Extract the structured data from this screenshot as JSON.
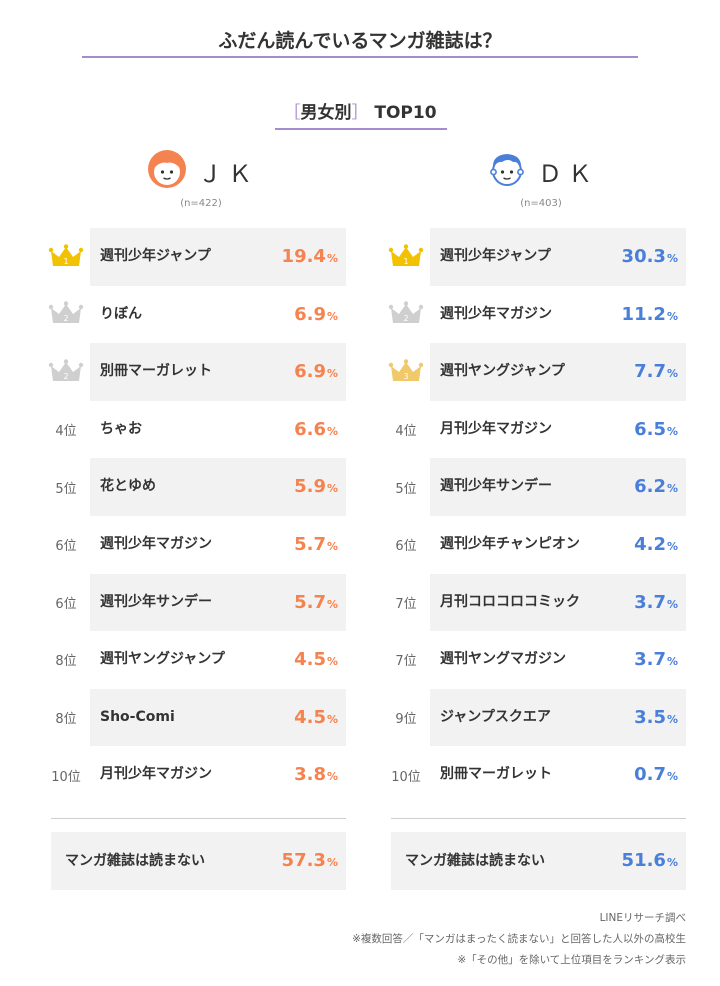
{
  "title": "ふだん読んでいるマンガ雑誌は？",
  "subtitle": {
    "bracket_open": "［",
    "label": "男女別",
    "bracket_close": "］",
    "suffix": "TOP10"
  },
  "colors": {
    "jk": "#f5834f",
    "dk": "#4a7fd9",
    "accent": "#a78bd0",
    "gold": "#f2c200",
    "silver": "#cfcfcf",
    "bronze": "#f0c96a"
  },
  "notes": [
    "LINEリサーチ調べ",
    "※複数回答／「マンガはまったく読まない」と回答した人以外の高校生",
    "※「その他」を除いて上位項目をランキング表示"
  ],
  "chart_data": [
    {
      "type": "table",
      "group": "ＪＫ",
      "n": "(n=422)",
      "unit": "%",
      "rows": [
        {
          "rank": "1",
          "crown": "gold",
          "name": "週刊少年ジャンプ",
          "value": "19.4"
        },
        {
          "rank": "2",
          "crown": "silver",
          "name": "りぼん",
          "value": "6.9"
        },
        {
          "rank": "2",
          "crown": "silver",
          "name": "別冊マーガレット",
          "value": "6.9"
        },
        {
          "rank": "4位",
          "name": "ちゃお",
          "value": "6.6"
        },
        {
          "rank": "5位",
          "name": "花とゆめ",
          "value": "5.9"
        },
        {
          "rank": "6位",
          "name": "週刊少年マガジン",
          "value": "5.7"
        },
        {
          "rank": "6位",
          "name": "週刊少年サンデー",
          "value": "5.7"
        },
        {
          "rank": "8位",
          "name": "週刊ヤングジャンプ",
          "value": "4.5"
        },
        {
          "rank": "8位",
          "name": "Sho-Comi",
          "value": "4.5"
        },
        {
          "rank": "10位",
          "name": "月刊少年マガジン",
          "value": "3.8"
        }
      ],
      "none": {
        "name": "マンガ雑誌は読まない",
        "value": "57.3"
      }
    },
    {
      "type": "table",
      "group": "ＤＫ",
      "n": "(n=403)",
      "unit": "%",
      "rows": [
        {
          "rank": "1",
          "crown": "gold",
          "name": "週刊少年ジャンプ",
          "value": "30.3"
        },
        {
          "rank": "2",
          "crown": "silver",
          "name": "週刊少年マガジン",
          "value": "11.2"
        },
        {
          "rank": "3",
          "crown": "bronze",
          "name": "週刊ヤングジャンプ",
          "value": "7.7"
        },
        {
          "rank": "4位",
          "name": "月刊少年マガジン",
          "value": "6.5"
        },
        {
          "rank": "5位",
          "name": "週刊少年サンデー",
          "value": "6.2"
        },
        {
          "rank": "6位",
          "name": "週刊少年チャンピオン",
          "value": "4.2"
        },
        {
          "rank": "7位",
          "name": "月刊コロコロコミック",
          "value": "3.7"
        },
        {
          "rank": "7位",
          "name": "週刊ヤングマガジン",
          "value": "3.7"
        },
        {
          "rank": "9位",
          "name": "ジャンプスクエア",
          "value": "3.5"
        },
        {
          "rank": "10位",
          "name": "別冊マーガレット",
          "value": "0.7"
        }
      ],
      "none": {
        "name": "マンガ雑誌は読まない",
        "value": "51.6"
      }
    }
  ]
}
